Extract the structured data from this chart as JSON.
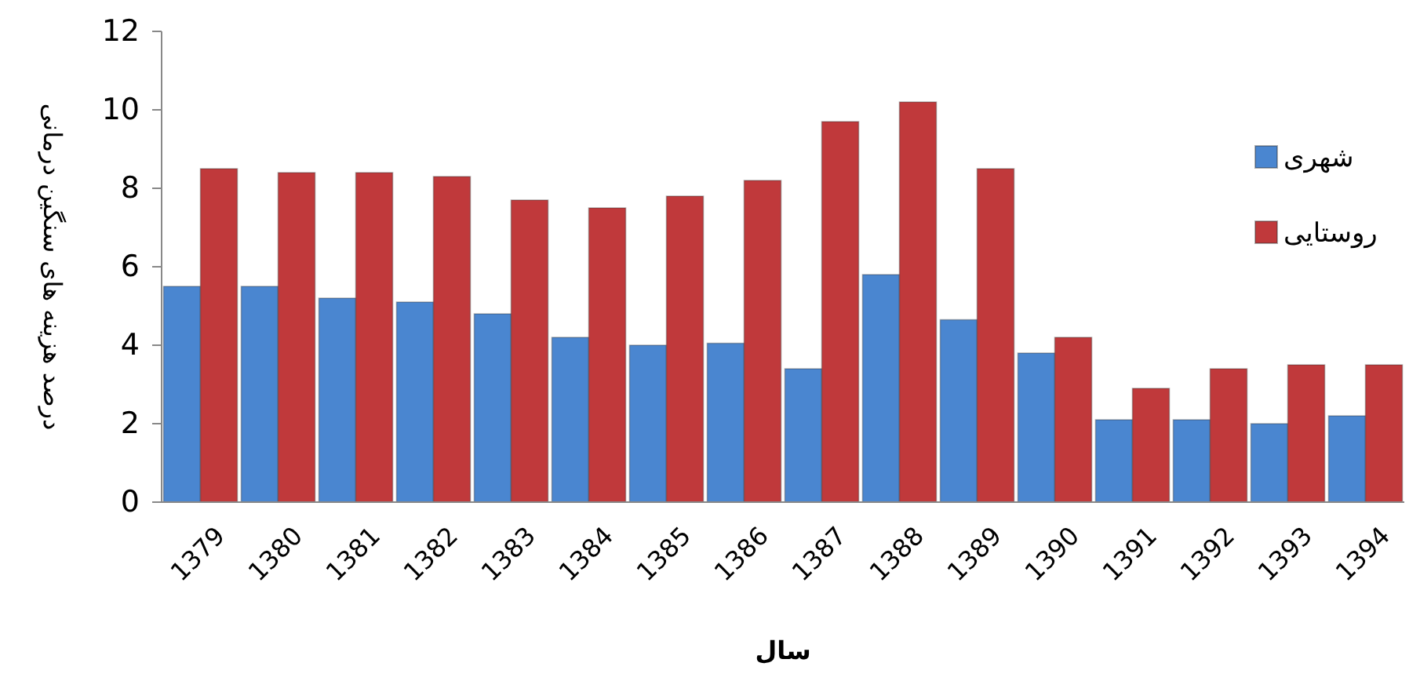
{
  "chart_data": {
    "type": "bar",
    "xlabel": "سال",
    "ylabel": "درصد هزینه های سنگین درمانی",
    "categories": [
      "1379",
      "1380",
      "1381",
      "1382",
      "1383",
      "1384",
      "1385",
      "1386",
      "1387",
      "1388",
      "1389",
      "1390",
      "1391",
      "1392",
      "1393",
      "1394"
    ],
    "series": [
      {
        "name": "شهری",
        "color": "#4a86d0",
        "values": [
          5.5,
          5.5,
          5.2,
          5.1,
          4.8,
          4.2,
          4.0,
          4.05,
          3.4,
          5.8,
          4.65,
          3.8,
          2.1,
          2.1,
          2.0,
          2.2
        ]
      },
      {
        "name": "روستایی",
        "color": "#c0393b",
        "values": [
          8.5,
          8.4,
          8.4,
          8.3,
          7.7,
          7.5,
          7.8,
          8.2,
          9.7,
          10.2,
          8.5,
          4.2,
          2.9,
          3.4,
          3.5,
          3.5
        ]
      }
    ],
    "ylim": [
      0,
      12
    ],
    "yticks": [
      0,
      2,
      4,
      6,
      8,
      10,
      12
    ],
    "legend": "right"
  }
}
